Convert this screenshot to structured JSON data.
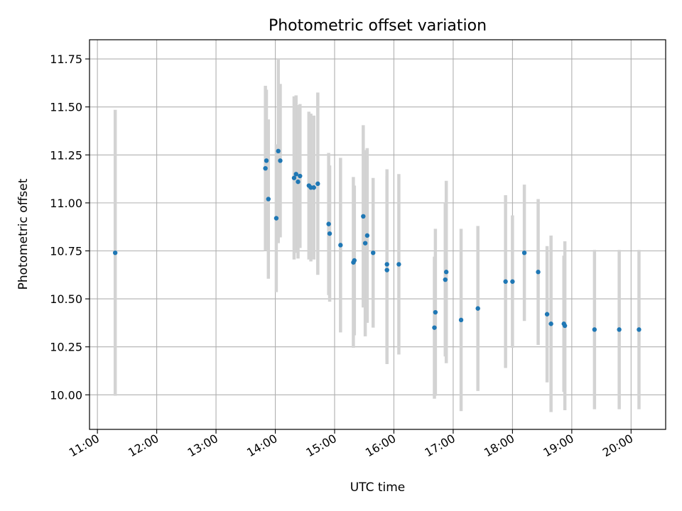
{
  "chart_data": {
    "type": "scatter",
    "title": "Photometric offset variation",
    "xlabel": "UTC time",
    "ylabel": "Photometric offset",
    "xlim": [
      "10:52",
      "20:35"
    ],
    "ylim": [
      9.82,
      11.85
    ],
    "grid": true,
    "x_ticks": [
      "11:00",
      "12:00",
      "13:00",
      "14:00",
      "15:00",
      "16:00",
      "17:00",
      "18:00",
      "19:00",
      "20:00"
    ],
    "y_ticks": [
      "10.00",
      "10.25",
      "10.50",
      "10.75",
      "11.00",
      "11.25",
      "11.50",
      "11.75"
    ],
    "colors": {
      "points": "#1f77b4",
      "errorbars": "#d3d3d3",
      "grid": "#b0b0b0"
    },
    "series": [
      {
        "x": [
          "11:18",
          "13:50",
          "13:51",
          "13:53",
          "14:01",
          "14:03",
          "14:05",
          "14:19",
          "14:21",
          "14:23",
          "14:25",
          "14:34",
          "14:36",
          "14:39",
          "14:43",
          "14:54",
          "14:55",
          "15:06",
          "15:19",
          "15:20",
          "15:29",
          "15:31",
          "15:33",
          "15:39",
          "15:53",
          "15:53",
          "16:05",
          "16:41",
          "16:42",
          "16:52",
          "16:53",
          "17:08",
          "17:25",
          "17:53",
          "18:00",
          "18:12",
          "18:26",
          "18:35",
          "18:39",
          "18:52",
          "18:53",
          "19:23",
          "19:48",
          "20:08"
        ],
        "y": [
          10.74,
          11.18,
          11.22,
          11.02,
          10.92,
          11.27,
          11.22,
          11.13,
          11.15,
          11.11,
          11.14,
          11.09,
          11.08,
          11.08,
          11.1,
          10.89,
          10.84,
          10.78,
          10.69,
          10.7,
          10.93,
          10.79,
          10.83,
          10.74,
          10.65,
          10.68,
          10.68,
          10.35,
          10.43,
          10.6,
          10.64,
          10.39,
          10.45,
          10.59,
          10.59,
          10.74,
          10.64,
          10.42,
          10.37,
          10.37,
          10.36,
          10.34,
          10.34,
          10.34
        ],
        "err": [
          0.745,
          0.43,
          0.37,
          0.415,
          0.385,
          0.48,
          0.4,
          0.425,
          0.41,
          0.4,
          0.375,
          0.385,
          0.385,
          0.375,
          0.475,
          0.37,
          0.355,
          0.455,
          0.445,
          0.39,
          0.475,
          0.485,
          0.455,
          0.39,
          0.49,
          0.495,
          0.47,
          0.37,
          0.435,
          0.4,
          0.475,
          0.475,
          0.43,
          0.45,
          0.345,
          0.355,
          0.38,
          0.355,
          0.46,
          0.355,
          0.44,
          0.415,
          0.415,
          0.415
        ]
      }
    ]
  }
}
